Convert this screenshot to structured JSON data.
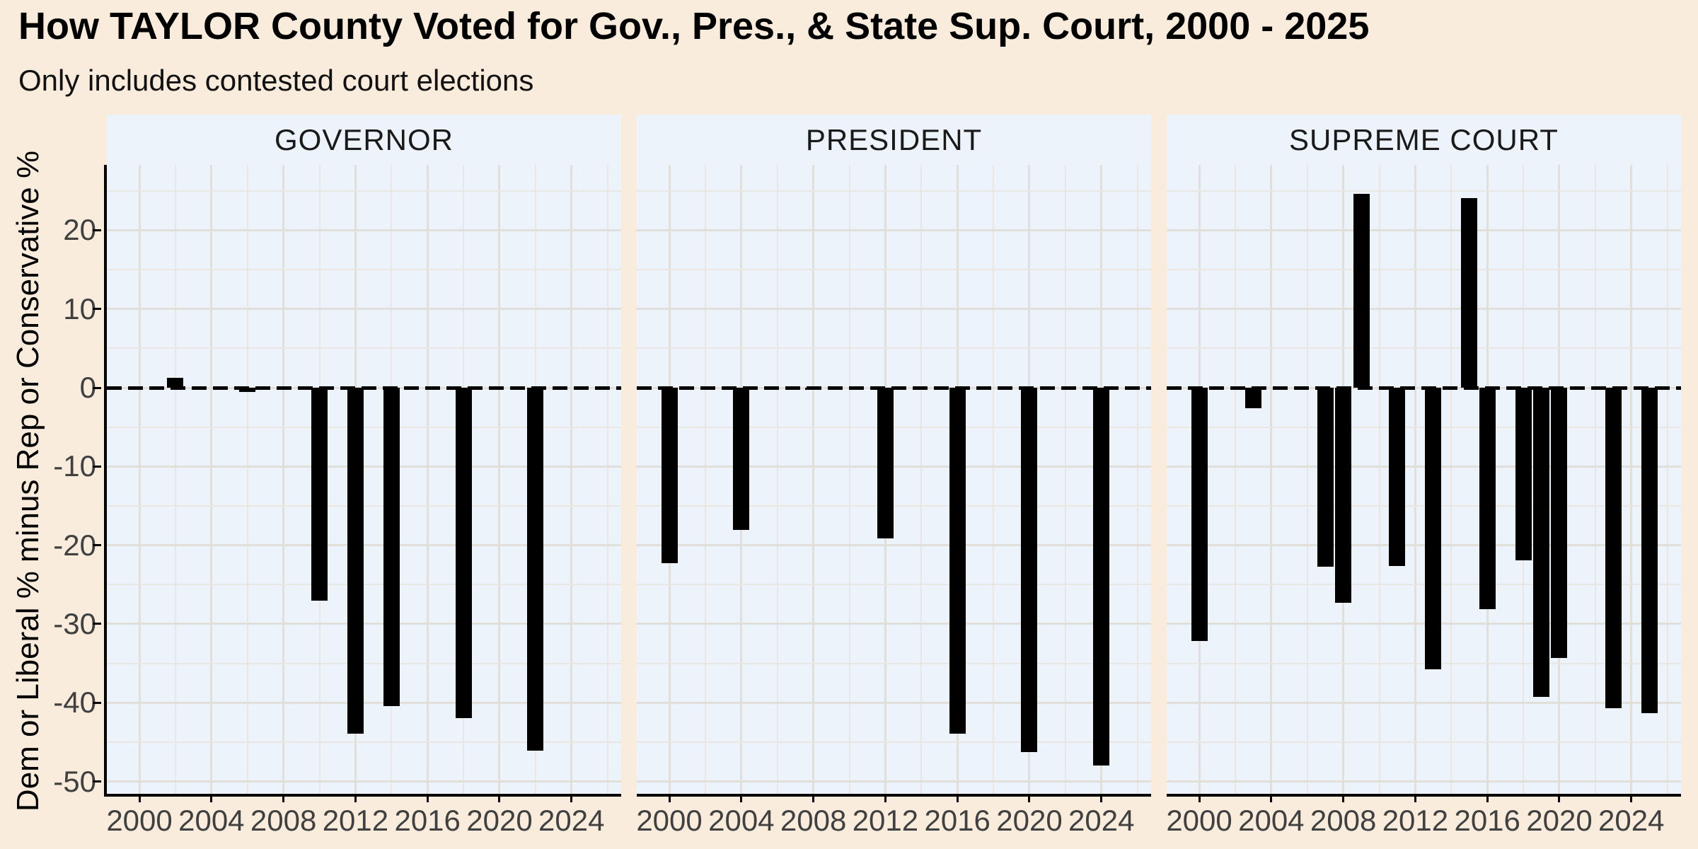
{
  "header": {
    "title": "How TAYLOR County Voted for Gov., Pres., & State Sup. Court, 2000 - 2025",
    "subtitle": "Only includes contested court elections"
  },
  "colors": {
    "background": "#f9ecdd",
    "panel_background": "#edf3fa",
    "grid_major": "#e2dfdb",
    "grid_minor": "#eae7e3",
    "bar": "#000000",
    "zero_line": "#000000",
    "axis_line": "#000000",
    "axis_text": "#404040",
    "strip_text": "#1a1a1a"
  },
  "chart_data": {
    "type": "bar",
    "title": "How TAYLOR County Voted for Gov., Pres., & State Sup. Court, 2000 - 2025",
    "subtitle": "Only includes contested court elections",
    "xlabel": "",
    "ylabel": "Dem or Liberal % minus Rep or Conservative %",
    "ylim": [
      -51.6,
      28.3
    ],
    "xlim": [
      1998.19,
      2026.76
    ],
    "y_ticks": [
      20,
      10,
      0,
      -10,
      -20,
      -30,
      -40,
      -50
    ],
    "y_minor_ticks": [
      25,
      15,
      5,
      -5,
      -15,
      -25,
      -35,
      -45
    ],
    "x_ticks": [
      2000,
      2004,
      2008,
      2012,
      2016,
      2020,
      2024
    ],
    "x_minor_ticks": [
      2002,
      2006,
      2010,
      2014,
      2018,
      2022,
      2026
    ],
    "grid": true,
    "zero_line_style": "dashed",
    "legend_position": "none",
    "facets": [
      {
        "label": "GOVERNOR",
        "points": [
          {
            "year": 2002,
            "value": 1.3
          },
          {
            "year": 2006,
            "value": -0.5
          },
          {
            "year": 2010,
            "value": -27.0
          },
          {
            "year": 2012,
            "value": -43.9
          },
          {
            "year": 2014,
            "value": -40.4
          },
          {
            "year": 2018,
            "value": -42.0
          },
          {
            "year": 2022,
            "value": -46.1
          }
        ]
      },
      {
        "label": "PRESIDENT",
        "points": [
          {
            "year": 2000,
            "value": -22.3
          },
          {
            "year": 2004,
            "value": -18.1
          },
          {
            "year": 2008,
            "value": -0.3
          },
          {
            "year": 2012,
            "value": -19.1
          },
          {
            "year": 2016,
            "value": -43.9
          },
          {
            "year": 2020,
            "value": -46.3
          },
          {
            "year": 2024,
            "value": -48.0
          }
        ]
      },
      {
        "label": "SUPREME COURT",
        "points": [
          {
            "year": 2000,
            "value": -32.2
          },
          {
            "year": 2003,
            "value": -2.6
          },
          {
            "year": 2007,
            "value": -22.7
          },
          {
            "year": 2008,
            "value": -27.3
          },
          {
            "year": 2009,
            "value": 24.6
          },
          {
            "year": 2011,
            "value": -22.6
          },
          {
            "year": 2013,
            "value": -35.8
          },
          {
            "year": 2015,
            "value": 24.1
          },
          {
            "year": 2016,
            "value": -28.1
          },
          {
            "year": 2018,
            "value": -21.9
          },
          {
            "year": 2019,
            "value": -39.3
          },
          {
            "year": 2020,
            "value": -34.3
          },
          {
            "year": 2023,
            "value": -40.7
          },
          {
            "year": 2025,
            "value": -41.3
          }
        ]
      }
    ]
  }
}
